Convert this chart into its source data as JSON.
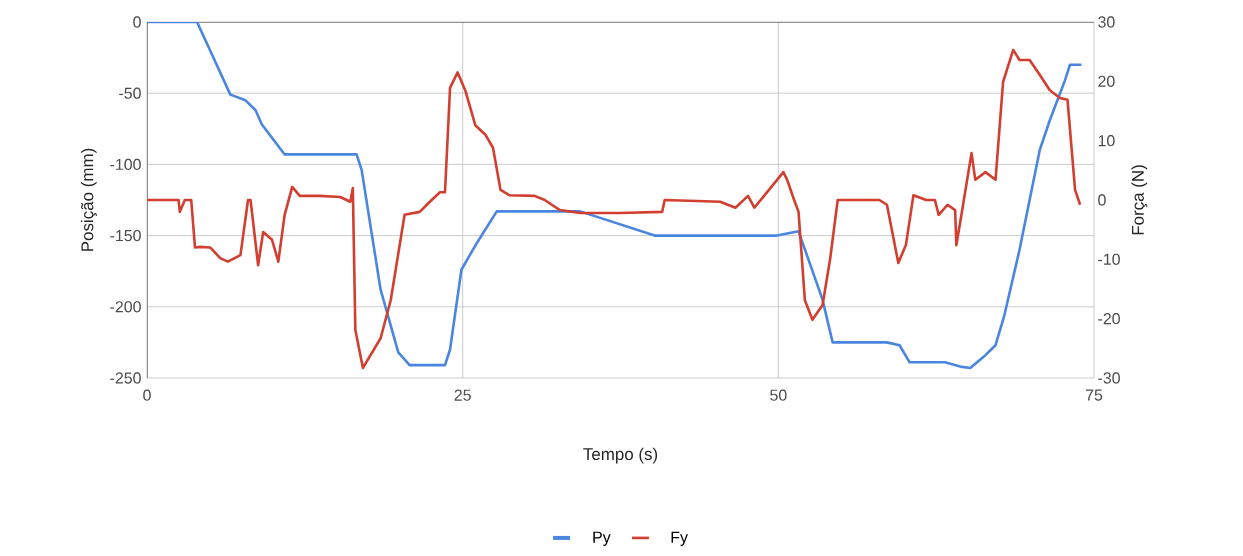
{
  "chart_data": {
    "type": "line",
    "xlabel": "Tempo (s)",
    "ylabel": "Posição (mm)",
    "y2label": "Força (N)",
    "xlim": [
      0,
      75
    ],
    "xticks": [
      0,
      25,
      50,
      75
    ],
    "ylim": [
      -250,
      0
    ],
    "yticks": [
      -250,
      -200,
      -150,
      -100,
      -50,
      0
    ],
    "y2lim": [
      -30,
      30
    ],
    "y2ticks": [
      -30,
      -20,
      -10,
      0,
      10,
      20,
      30
    ],
    "grid": true,
    "legend": "bottom",
    "line_style": "solid",
    "series": [
      {
        "name": "Py",
        "color": "#4a86e0",
        "x": [
          0,
          3.96,
          5,
          6.6,
          7.8,
          8.6,
          9.1,
          10.9,
          16.6,
          17,
          18.5,
          19.9,
          20.8,
          23.6,
          24,
          24.9,
          26,
          27.7,
          34.3,
          40.2,
          49.9,
          51.6,
          53.5,
          54.3,
          58.6,
          59.6,
          60.4,
          63.2,
          64.4,
          65.2,
          66.4,
          67.2,
          67.9,
          69.1,
          69.9,
          70.7,
          71.5,
          72.7,
          73.1,
          74
        ],
        "values": [
          0,
          0,
          -20,
          -51,
          -55,
          -62,
          -72,
          -93,
          -93,
          -104,
          -188,
          -232,
          -241,
          -241,
          -230,
          -174,
          -157,
          -133,
          -133,
          -150,
          -150,
          -147,
          -195,
          -225,
          -225,
          -227,
          -239,
          -239,
          -242,
          -243,
          -234,
          -227,
          -206,
          -160,
          -125,
          -90,
          -69,
          -41,
          -30,
          -30
        ]
      },
      {
        "name": "Fy",
        "color": "#d23f31",
        "axis": "y2",
        "x": [
          0,
          2.5,
          2.6,
          3,
          3.5,
          3.8,
          4.2,
          5,
          5.8,
          6.4,
          7.4,
          8,
          8.2,
          8.8,
          9.2,
          9.9,
          10.4,
          10.9,
          11.5,
          12.1,
          13.7,
          15.3,
          16.1,
          16.3,
          16.5,
          17.1,
          18.5,
          19.3,
          20.4,
          21.6,
          22.4,
          23.2,
          23.6,
          24,
          24.6,
          25.2,
          26,
          26.8,
          27.4,
          28,
          28.7,
          30.7,
          31.5,
          32.7,
          34.3,
          37.5,
          40.8,
          41,
          45.4,
          46.6,
          47.6,
          48.1,
          50.4,
          50.7,
          51.2,
          51.6,
          52.1,
          52.7,
          53.5,
          54.1,
          54.7,
          58,
          58.6,
          59.5,
          60.1,
          60.7,
          61.7,
          62.4,
          62.7,
          63.4,
          64,
          64.1,
          64.5,
          65.3,
          65.6,
          66.4,
          67.2,
          67.8,
          68.6,
          69.1,
          69.9,
          70.7,
          71.5,
          72.3,
          72.9,
          73.5,
          73.9
        ],
        "values": [
          0,
          0,
          -2,
          0,
          0,
          -8,
          -7.9,
          -8,
          -9.8,
          -10.4,
          -9.3,
          0,
          0,
          -11,
          -5.4,
          -6.7,
          -10.4,
          -2.5,
          2.2,
          0.7,
          0.7,
          0.5,
          -0.3,
          2,
          -21.9,
          -28.3,
          -23.3,
          -16.9,
          -2.5,
          -2,
          -0.3,
          1.3,
          1.3,
          18.9,
          21.5,
          18.5,
          12.6,
          11,
          8.8,
          1.7,
          0.8,
          0.7,
          0,
          -1.7,
          -2.2,
          -2.2,
          -2,
          0,
          -0.3,
          -1.3,
          0.7,
          -1.3,
          4.7,
          3.4,
          0.3,
          -2,
          -16.9,
          -20.2,
          -17.7,
          -10,
          0,
          0,
          -0.8,
          -10.6,
          -7.6,
          0.8,
          0,
          0,
          -2.5,
          -0.8,
          -1.7,
          -7.6,
          -2.5,
          7.9,
          3.4,
          4.7,
          3.4,
          19.9,
          25.3,
          23.6,
          23.6,
          21.1,
          18.5,
          17.2,
          16.9,
          1.7,
          -0.8
        ]
      }
    ]
  }
}
